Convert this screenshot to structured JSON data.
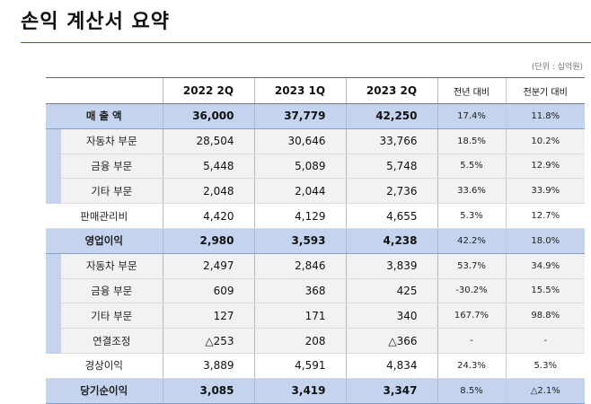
{
  "title": "손익 계산서 요약",
  "unit": "(단위 : 십억원)",
  "columns": [
    "2022 2Q",
    "2023 1Q",
    "2023 2Q",
    "전년 대비",
    "전분기 대비"
  ],
  "rows": [
    {
      "label": "매 출 액",
      "v1": "36,000",
      "v2": "37,779",
      "v3": "42,250",
      "yoy": "17.4%",
      "qoq": "11.8%"
    },
    {
      "label": "자동차 부문",
      "v1": "28,504",
      "v2": "30,646",
      "v3": "33,766",
      "yoy": "18.5%",
      "qoq": "10.2%"
    },
    {
      "label": "금융 부문",
      "v1": "5,448",
      "v2": "5,089",
      "v3": "5,748",
      "yoy": "5.5%",
      "qoq": "12.9%"
    },
    {
      "label": "기타 부문",
      "v1": "2,048",
      "v2": "2,044",
      "v3": "2,736",
      "yoy": "33.6%",
      "qoq": "33.9%"
    },
    {
      "label": "판매관리비",
      "v1": "4,420",
      "v2": "4,129",
      "v3": "4,655",
      "yoy": "5.3%",
      "qoq": "12.7%"
    },
    {
      "label": "영업이익",
      "v1": "2,980",
      "v2": "3,593",
      "v3": "4,238",
      "yoy": "42.2%",
      "qoq": "18.0%"
    },
    {
      "label": "자동차 부문",
      "v1": "2,497",
      "v2": "2,846",
      "v3": "3,839",
      "yoy": "53.7%",
      "qoq": "34.9%"
    },
    {
      "label": "금융 부문",
      "v1": "609",
      "v2": "368",
      "v3": "425",
      "yoy": "-30.2%",
      "qoq": "15.5%"
    },
    {
      "label": "기타 부문",
      "v1": "127",
      "v2": "171",
      "v3": "340",
      "yoy": "167.7%",
      "qoq": "98.8%"
    },
    {
      "label": "연결조정",
      "v1": "△253",
      "v2": "208",
      "v3": "△366",
      "yoy": "-",
      "qoq": "-"
    },
    {
      "label": "경상이익",
      "v1": "3,889",
      "v2": "4,591",
      "v3": "4,834",
      "yoy": "24.3%",
      "qoq": "5.3%"
    },
    {
      "label": "당기순이익",
      "v1": "3,085",
      "v2": "3,419",
      "v3": "3,347",
      "yoy": "8.5%",
      "qoq": "△2.1%"
    }
  ]
}
